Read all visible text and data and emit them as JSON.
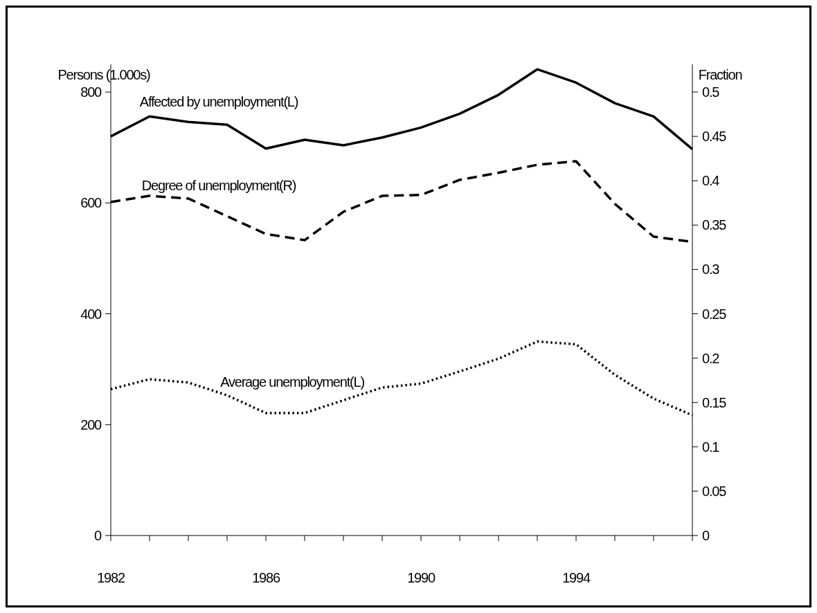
{
  "chart_data": {
    "type": "line",
    "ylabel": "Persons (1.000s)",
    "y2label": "Fraction",
    "x": [
      1982,
      1983,
      1984,
      1985,
      1986,
      1987,
      1988,
      1989,
      1990,
      1991,
      1992,
      1993,
      1994,
      1995,
      1996,
      1997
    ],
    "xlim": [
      1982,
      1997
    ],
    "xticks": [
      1982,
      {
        "value": 1983,
        "label": null
      },
      {
        "value": 1984,
        "label": null
      },
      {
        "value": 1985,
        "label": null
      },
      1986,
      {
        "value": 1987,
        "label": null
      },
      {
        "value": 1988,
        "label": null
      },
      {
        "value": 1989,
        "label": null
      },
      1990,
      {
        "value": 1991,
        "label": null
      },
      {
        "value": 1992,
        "label": null
      },
      {
        "value": 1993,
        "label": null
      },
      1994,
      {
        "value": 1995,
        "label": null
      },
      {
        "value": 1996,
        "label": null
      },
      {
        "value": 1997,
        "label": null
      }
    ],
    "ylim": [
      0,
      850
    ],
    "yticks": [
      0,
      200,
      400,
      600,
      800
    ],
    "y2lim": [
      0,
      0.53125
    ],
    "y2ticks": [
      0,
      0.05,
      0.1,
      0.15,
      0.2,
      0.25,
      0.3,
      0.35,
      0.4,
      0.45,
      0.5
    ],
    "grid": false,
    "series": [
      {
        "name": "Affected by unemployment(L)",
        "color": "#000000",
        "line_style": "solid",
        "values": [
          720,
          756,
          746,
          741,
          698,
          714,
          704,
          718,
          736,
          761,
          795,
          841,
          817,
          780,
          756,
          697
        ]
      },
      {
        "name": "Degree of unemployment(R)",
        "color": "#000000",
        "line_style": "dashed",
        "axis": "y2",
        "values": [
          0.376,
          0.383,
          0.38,
          0.36,
          0.34,
          0.333,
          0.365,
          0.383,
          0.384,
          0.401,
          0.409,
          0.418,
          0.422,
          0.374,
          0.337,
          0.331
        ]
      },
      {
        "name": "Average unemployment(L)",
        "color": "#000000",
        "line_style": "dotted",
        "values": [
          264,
          282,
          276,
          253,
          221,
          221,
          244,
          267,
          274,
          296,
          319,
          350,
          345,
          290,
          247,
          217
        ]
      }
    ]
  }
}
